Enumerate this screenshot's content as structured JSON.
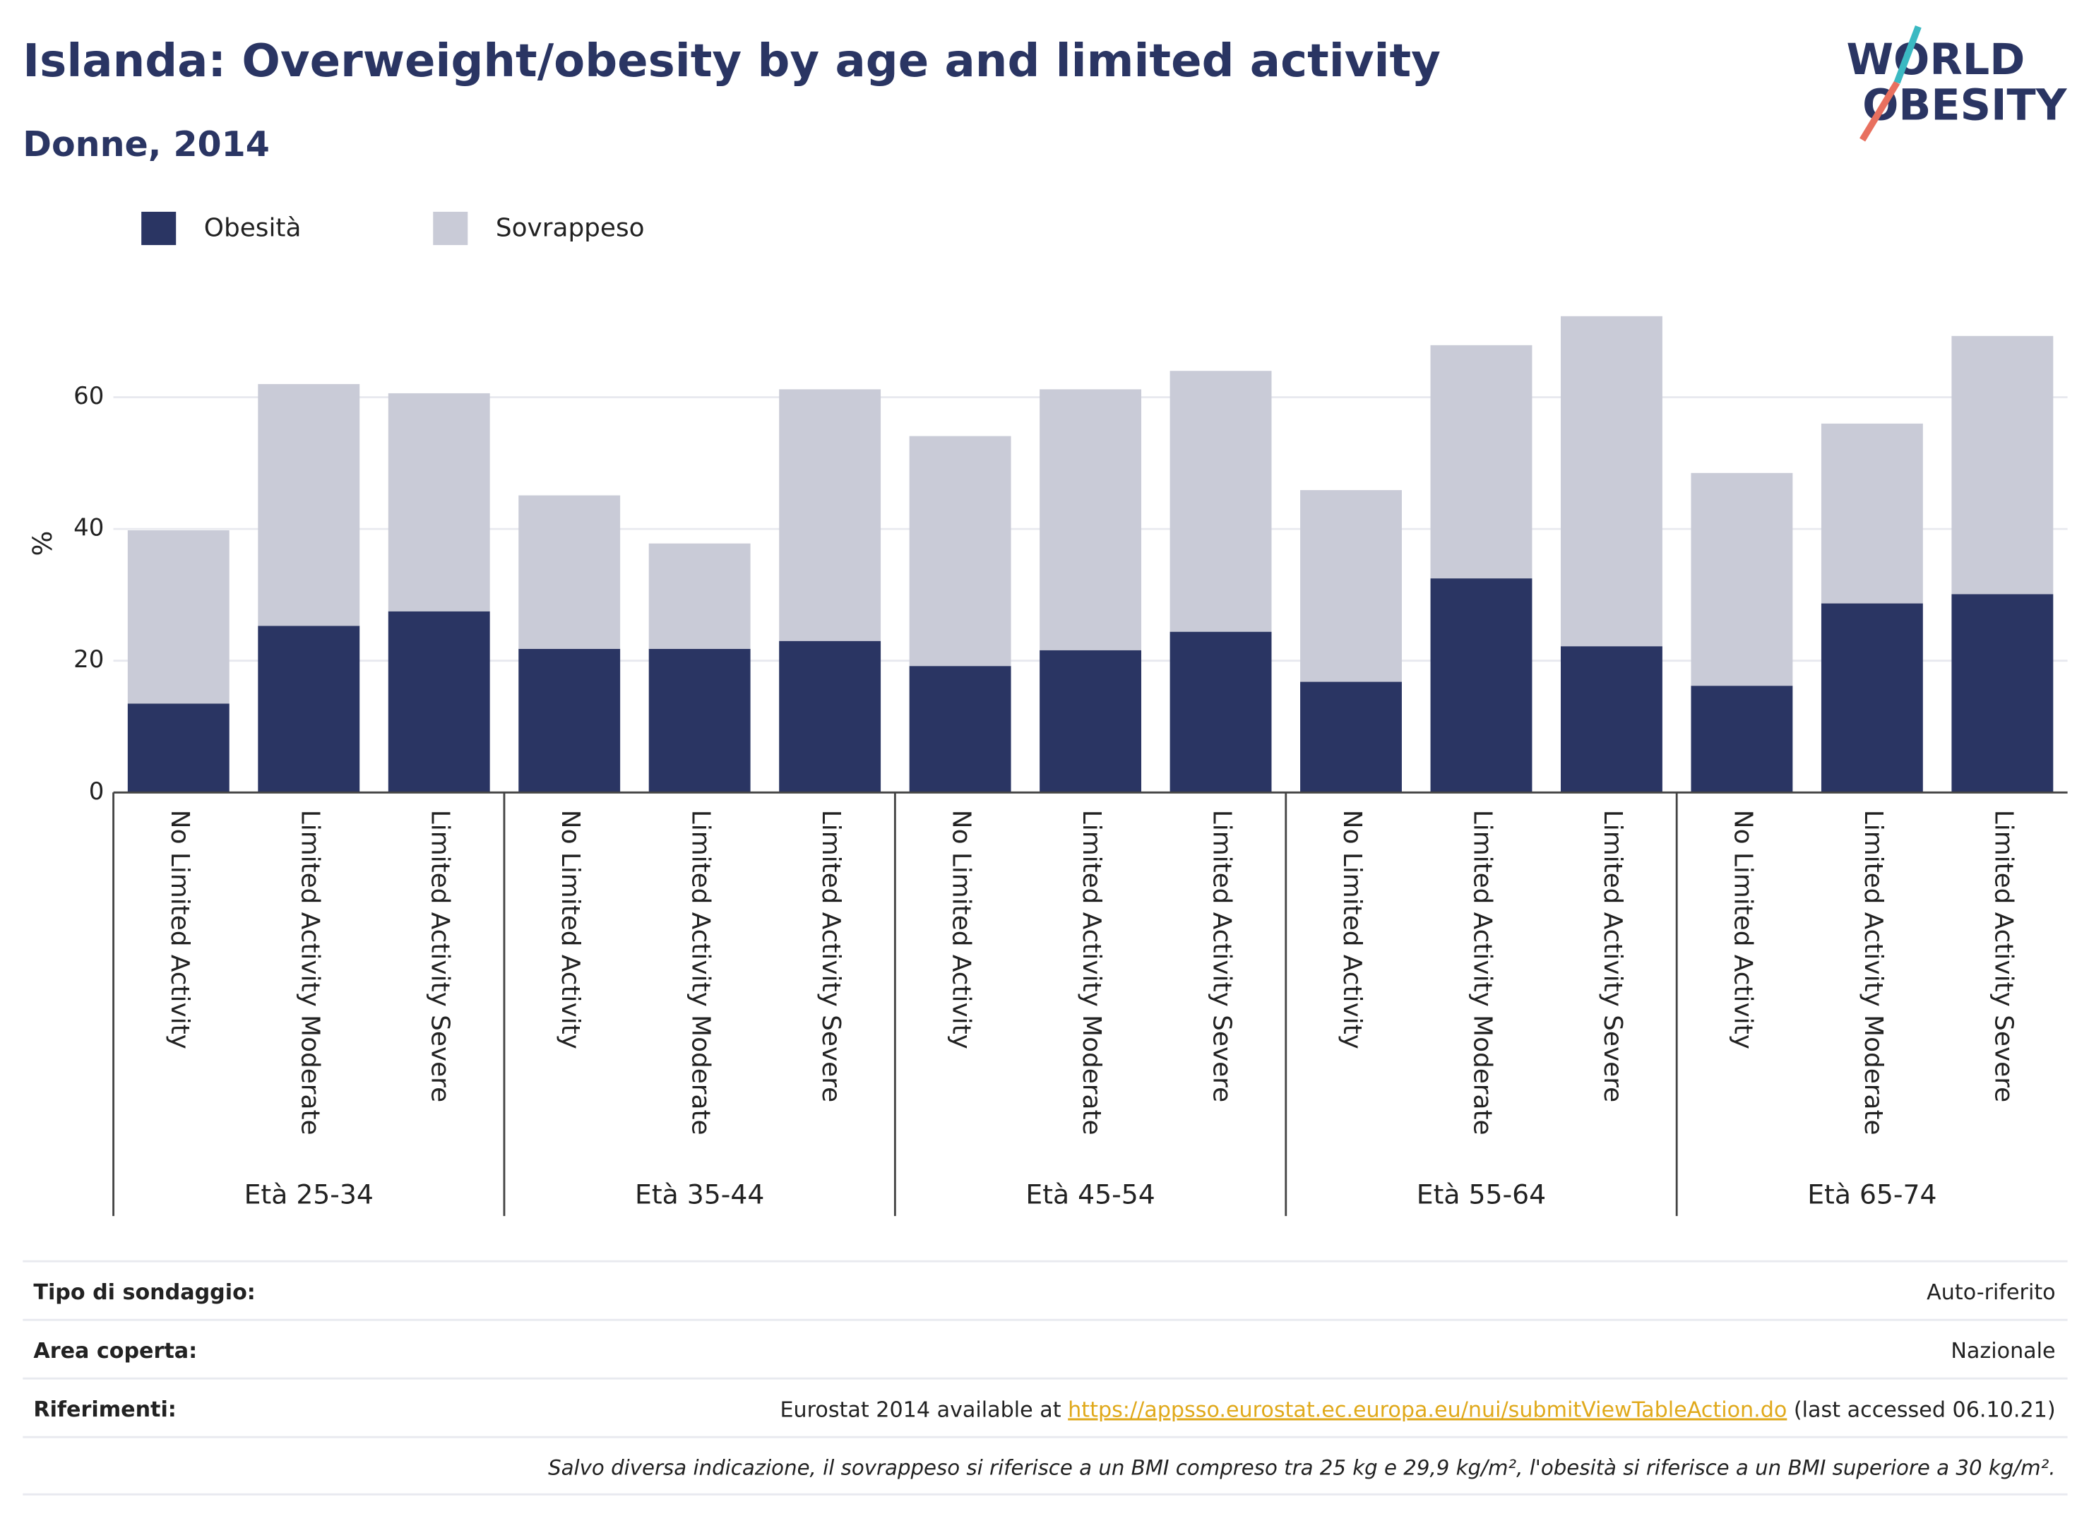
{
  "chart_data": {
    "type": "bar",
    "stacked": true,
    "title": "Islanda: Overweight/obesity by age and limited activity",
    "subtitle": "Donne, 2014",
    "y_label": "%",
    "categories": [
      "No Limited Activity",
      "Limited Activity Moderate",
      "Limited Activity Severe",
      "No Limited Activity",
      "Limited Activity Moderate",
      "Limited Activity Severe",
      "No Limited Activity",
      "Limited Activity Moderate",
      "Limited Activity Severe",
      "No Limited Activity",
      "Limited Activity Moderate",
      "Limited Activity Severe",
      "No Limited Activity",
      "Limited Activity Moderate",
      "Limited Activity Severe"
    ],
    "groups": [
      "Età 25-34",
      "Età 35-44",
      "Età 45-54",
      "Età 55-64",
      "Età 65-74"
    ],
    "series": [
      {
        "name": "Obesità",
        "color": "#2a3563",
        "values": [
          13.5,
          25.3,
          27.5,
          21.8,
          21.8,
          23.0,
          19.2,
          21.6,
          24.4,
          16.8,
          32.5,
          22.2,
          16.2,
          28.7,
          30.1
        ]
      },
      {
        "name": "Sovrappeso",
        "color": "#c9cbd7",
        "values": [
          26.3,
          36.7,
          33.1,
          23.3,
          16.0,
          38.2,
          34.9,
          39.6,
          39.6,
          29.1,
          35.4,
          50.1,
          32.3,
          27.3,
          39.2
        ]
      }
    ],
    "ylim": [
      0,
      74
    ],
    "yticks": [
      0,
      20,
      40,
      60
    ],
    "grid": true,
    "legend": "top-left"
  },
  "logo": [
    "WORLD",
    "OBESITY"
  ],
  "footer": {
    "rows": [
      {
        "label": "Tipo di sondaggio:",
        "value": "Auto-riferito"
      },
      {
        "label": "Area coperta:",
        "value": "Nazionale"
      },
      {
        "label": "Riferimenti:",
        "value": [
          "Eurostat 2014 available at ",
          "https://appsso.eurostat.ec.europa.eu/nui/submitViewTableAction.do",
          " (last accessed 06.10.21)"
        ]
      }
    ],
    "note": "Salvo diversa indicazione, il sovrappeso si riferisce a un BMI compreso tra 25 kg e 29,9 kg/m², l'obesità si riferisce a un BMI superiore a 30 kg/m²."
  }
}
